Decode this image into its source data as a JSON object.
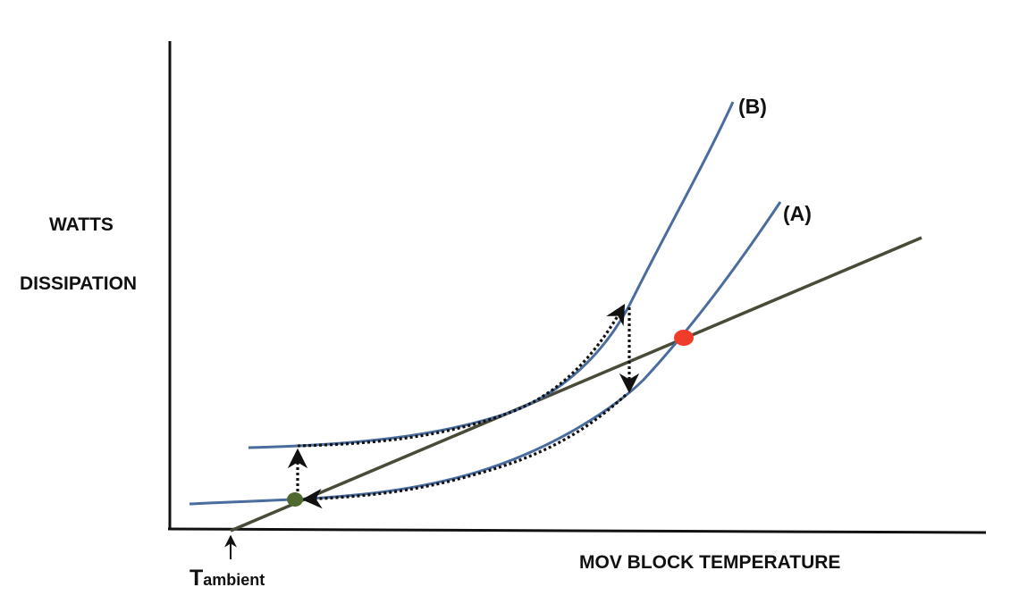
{
  "labels": {
    "y_axis_line1": "WATTS",
    "y_axis_line2": "DISSIPATION",
    "x_axis": "MOV BLOCK TEMPERATURE",
    "ambient_main": "T",
    "ambient_sub": "ambient",
    "curve_b": "(B)",
    "curve_a": "(A)"
  },
  "colors": {
    "axes": "#111111",
    "curves": "#4a6c9e",
    "heat_dissipation_line": "#4a4a38",
    "unstable_point": "#f03c2a",
    "stable_point": "#4f6a2c",
    "path": "#111111"
  },
  "markers": {
    "stable_point": "stable-operating-point",
    "unstable_point": "thermal-runaway-point"
  }
}
